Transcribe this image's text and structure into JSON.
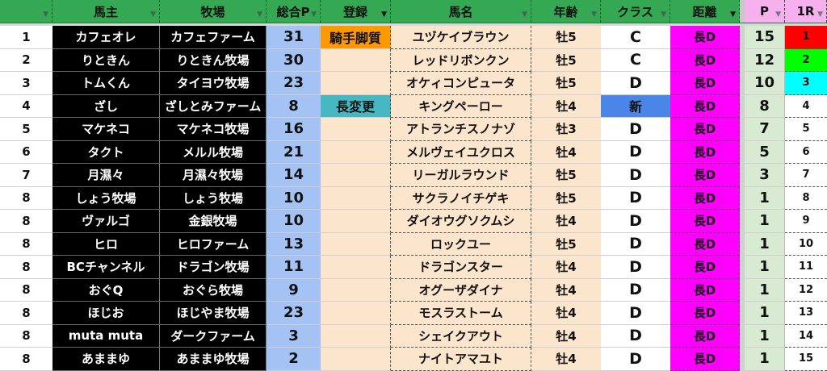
{
  "headers": {
    "rank": "",
    "owner": "馬主",
    "farm": "牧場",
    "total_p": "総合P",
    "registration": "登録",
    "horse_name": "馬名",
    "age": "年齢",
    "class": "クラス",
    "distance": "距離",
    "p": "P",
    "r1": "1R"
  },
  "filter_icon": "filter-icon",
  "colors": {
    "header_green": "#34a853",
    "header_pink": "#f6b0ee",
    "total_blue": "#a4c2f4",
    "peach": "#fce5cd",
    "jockey_orange": "#ff9900",
    "change_teal": "#45b8c3",
    "new_blue": "#4a86e8",
    "distance_magenta": "#ff00ff",
    "p_green": "#d9ead3",
    "r1_first": "#ff0000",
    "r1_second": "#00ff00",
    "r1_third": "#00ffff"
  },
  "rows": [
    {
      "rank": "1",
      "owner": "カフェオレ",
      "farm": "カフェファーム",
      "total": "31",
      "reg": "騎手脚質",
      "name": "ユヅケイブラウン",
      "age": "牡5",
      "class": "C",
      "dist": "長D",
      "p": "15",
      "r1": "1"
    },
    {
      "rank": "2",
      "owner": "りときん",
      "farm": "りときん牧場",
      "total": "30",
      "reg": "",
      "name": "レッドリボンクン",
      "age": "牡5",
      "class": "C",
      "dist": "長D",
      "p": "12",
      "r1": "2"
    },
    {
      "rank": "3",
      "owner": "トムくん",
      "farm": "タイヨウ牧場",
      "total": "23",
      "reg": "",
      "name": "オケィコンピュータ",
      "age": "牡5",
      "class": "D",
      "dist": "長D",
      "p": "10",
      "r1": "3"
    },
    {
      "rank": "4",
      "owner": "ざし",
      "farm": "ざしとみファーム",
      "total": "8",
      "reg": "長変更",
      "name": "キングペーロー",
      "age": "牡4",
      "class": "新",
      "dist": "長D",
      "p": "8",
      "r1": "4"
    },
    {
      "rank": "5",
      "owner": "マケネコ",
      "farm": "マケネコ牧場",
      "total": "16",
      "reg": "",
      "name": "アトランチスノナゾ",
      "age": "牡3",
      "class": "D",
      "dist": "長D",
      "p": "7",
      "r1": "5"
    },
    {
      "rank": "6",
      "owner": "タクト",
      "farm": "メルル牧場",
      "total": "21",
      "reg": "",
      "name": "メルヴェイユクロス",
      "age": "牡4",
      "class": "D",
      "dist": "長D",
      "p": "5",
      "r1": "6"
    },
    {
      "rank": "7",
      "owner": "月濕々",
      "farm": "月濕々牧場",
      "total": "14",
      "reg": "",
      "name": "リーガルラウンド",
      "age": "牡5",
      "class": "D",
      "dist": "長D",
      "p": "3",
      "r1": "7"
    },
    {
      "rank": "8",
      "owner": "しょう牧場",
      "farm": "しょう牧場",
      "total": "10",
      "reg": "",
      "name": "サクラノイチゲキ",
      "age": "牡5",
      "class": "D",
      "dist": "長D",
      "p": "1",
      "r1": "8"
    },
    {
      "rank": "8",
      "owner": "ヴァルゴ",
      "farm": "金銀牧場",
      "total": "10",
      "reg": "",
      "name": "ダイオウグソクムシ",
      "age": "牡4",
      "class": "D",
      "dist": "長D",
      "p": "1",
      "r1": "9"
    },
    {
      "rank": "8",
      "owner": "ヒロ",
      "farm": "ヒロファーム",
      "total": "13",
      "reg": "",
      "name": "ロックユー",
      "age": "牡5",
      "class": "D",
      "dist": "長D",
      "p": "1",
      "r1": "10"
    },
    {
      "rank": "8",
      "owner": "BCチャンネル",
      "farm": "ドラゴン牧場",
      "total": "11",
      "reg": "",
      "name": "ドラゴンスター",
      "age": "牡4",
      "class": "D",
      "dist": "長D",
      "p": "1",
      "r1": "11"
    },
    {
      "rank": "8",
      "owner": "おぐQ",
      "farm": "おぐら牧場",
      "total": "9",
      "reg": "",
      "name": "オグーザダイナ",
      "age": "牡4",
      "class": "D",
      "dist": "長D",
      "p": "1",
      "r1": "12"
    },
    {
      "rank": "8",
      "owner": "ほじお",
      "farm": "ほじやま牧場",
      "total": "23",
      "reg": "",
      "name": "モスラストーム",
      "age": "牡4",
      "class": "D",
      "dist": "長D",
      "p": "1",
      "r1": "13"
    },
    {
      "rank": "8",
      "owner": "muta muta",
      "farm": "ダークファーム",
      "total": "3",
      "reg": "",
      "name": "シェイクアウト",
      "age": "牡4",
      "class": "D",
      "dist": "長D",
      "p": "1",
      "r1": "14"
    },
    {
      "rank": "8",
      "owner": "あままゆ",
      "farm": "あままゆ牧場",
      "total": "2",
      "reg": "",
      "name": "ナイトアマユト",
      "age": "牡4",
      "class": "D",
      "dist": "長D",
      "p": "1",
      "r1": "15"
    }
  ]
}
